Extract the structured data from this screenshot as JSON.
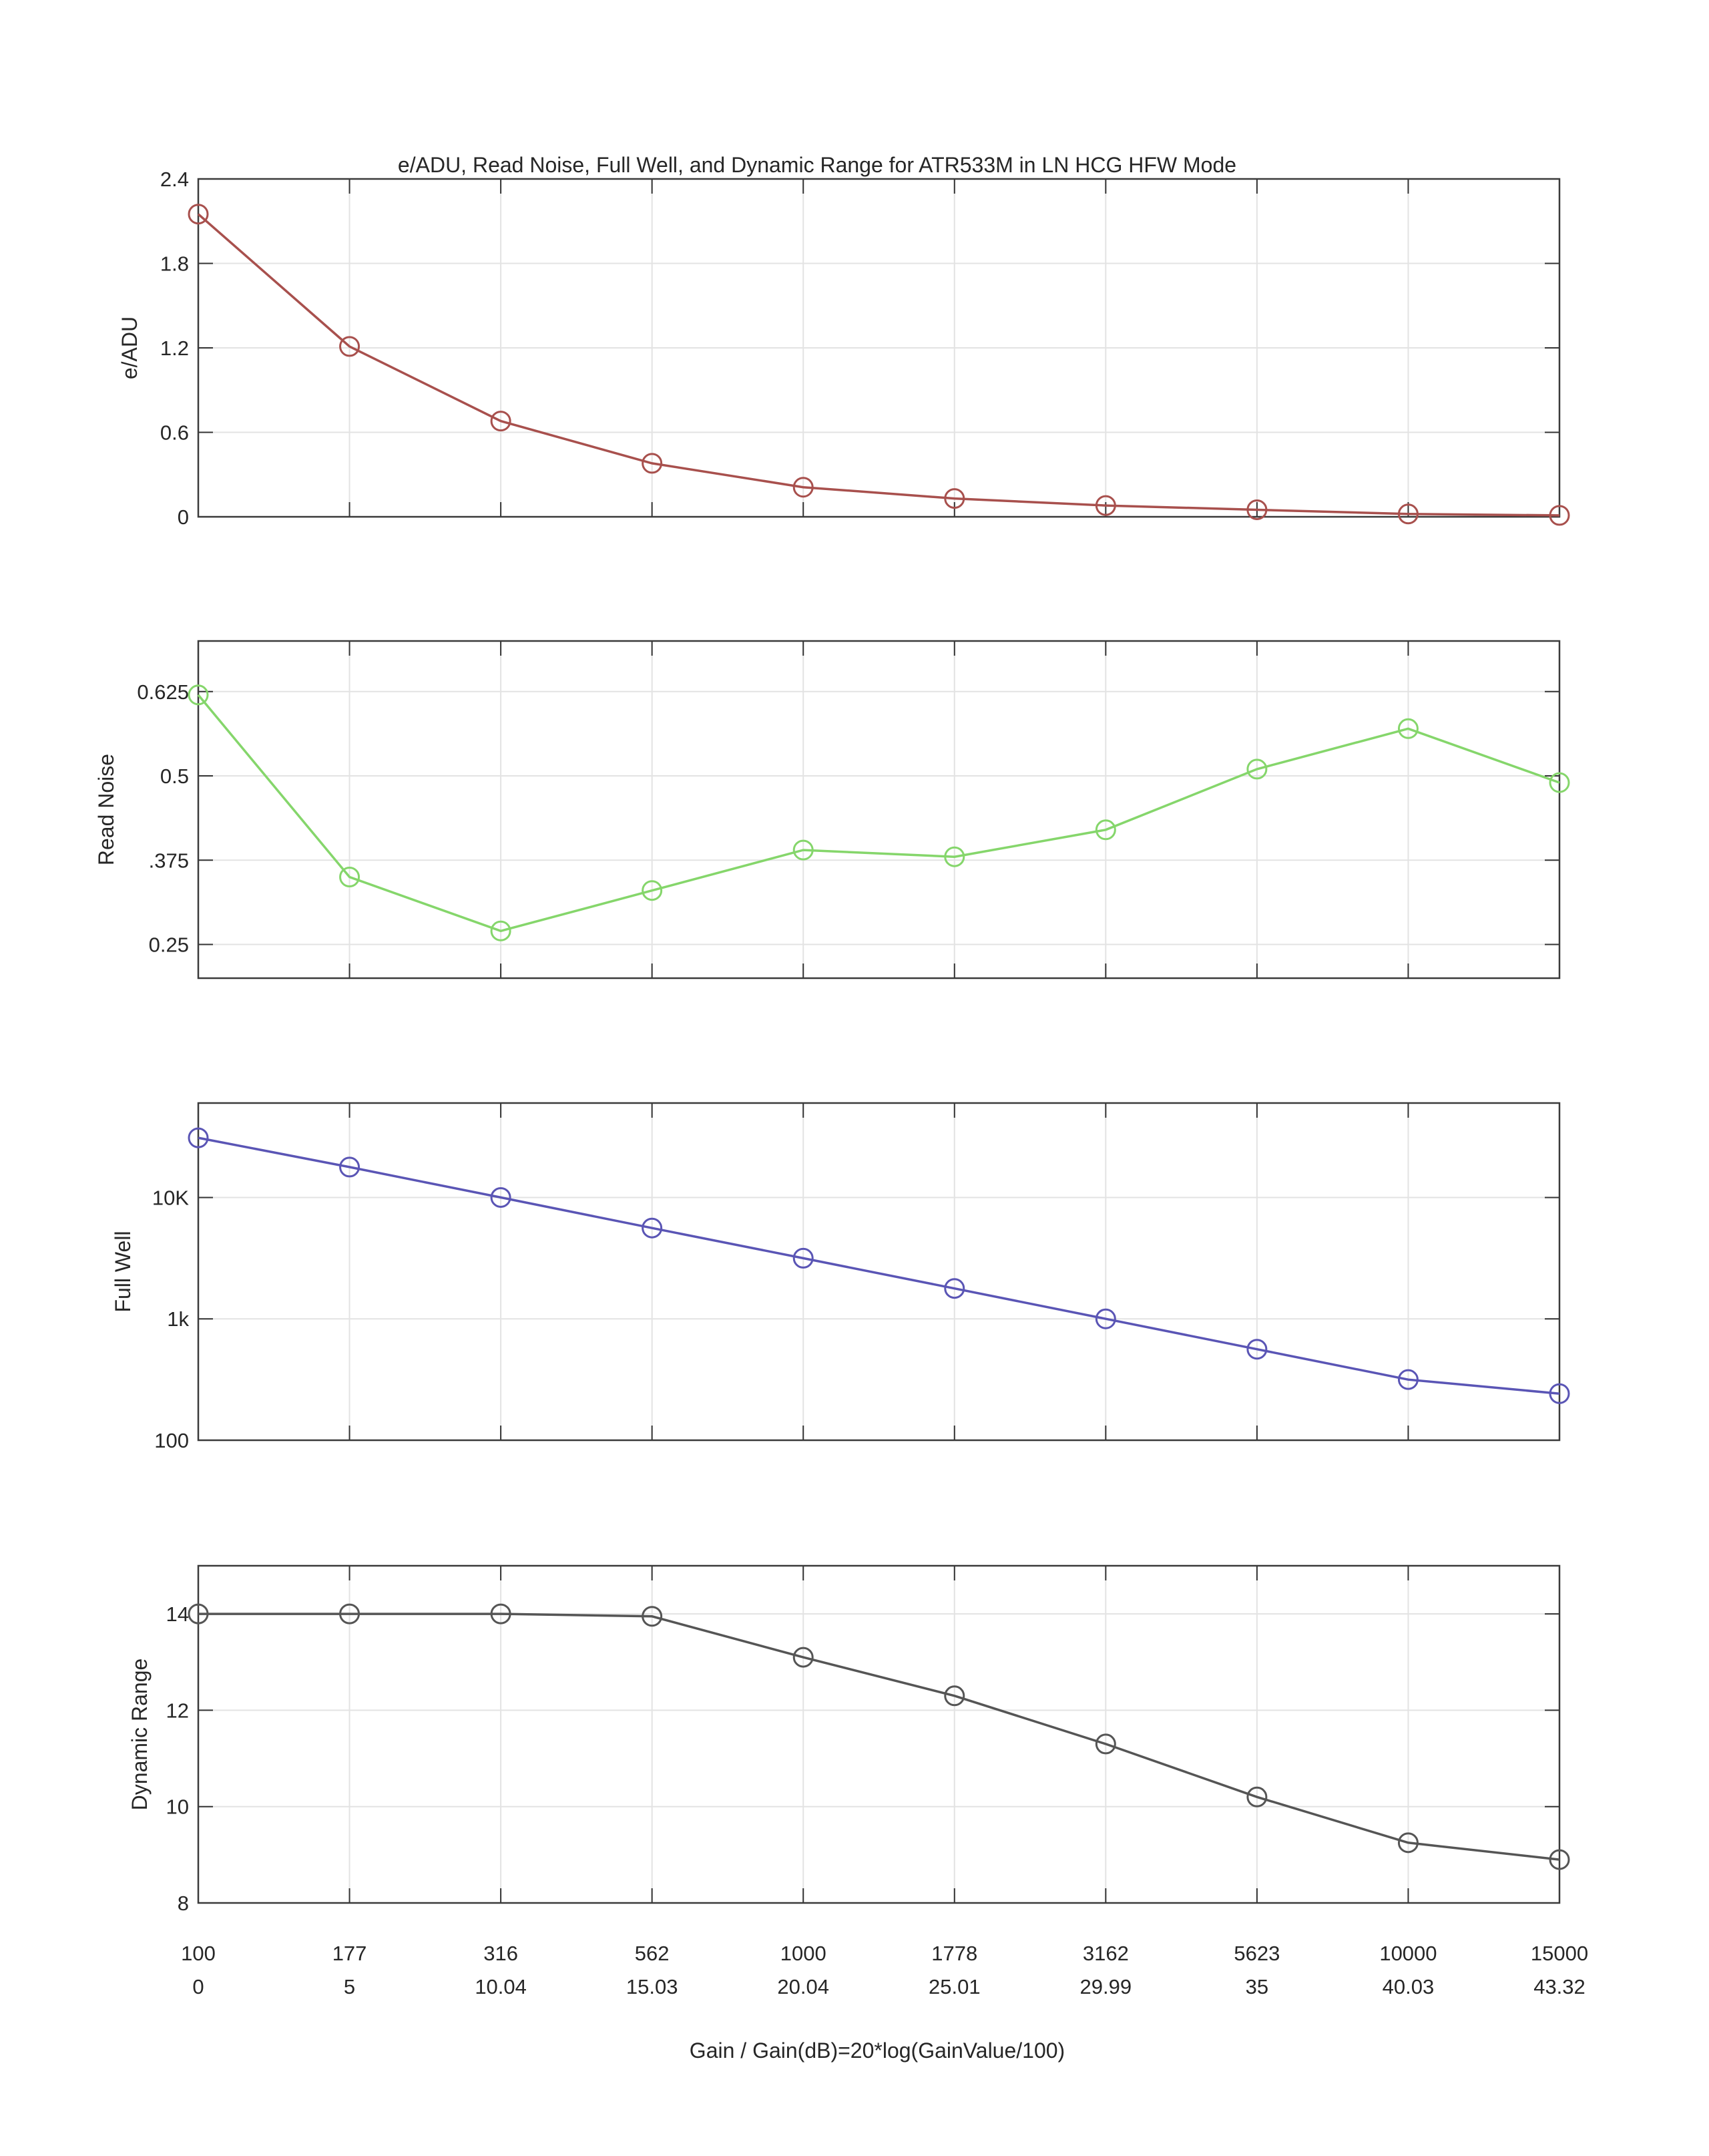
{
  "chart_data": {
    "type": "line",
    "title": "e/ADU, Read Noise, Full Well, and Dynamic Range for  ATR533M    in LN HCG HFW Mode",
    "xlabel": "Gain / Gain(dB)=20*log(GainValue/100)",
    "x_gain": [
      "100",
      "177",
      "316",
      "562",
      "1000",
      "1778",
      "3162",
      "5623",
      "10000",
      "15000"
    ],
    "x_gain_db": [
      "0",
      "5",
      "10.04",
      "15.03",
      "20.04",
      "25.01",
      "29.99",
      "35",
      "40.03",
      "43.32"
    ],
    "grid": true,
    "marker": "circle",
    "panels": [
      {
        "ylabel": "e/ADU",
        "scale": "linear",
        "ylim": [
          0,
          2.4
        ],
        "yticks": [
          0,
          0.6,
          1.2,
          1.8,
          2.4
        ],
        "ytick_labels": [
          "0",
          "0.6",
          "1.2",
          "1.8",
          "2.4"
        ],
        "color": "#a8504d",
        "values": [
          2.15,
          1.21,
          0.68,
          0.38,
          0.21,
          0.13,
          0.08,
          0.05,
          0.02,
          0.01
        ]
      },
      {
        "ylabel": "Read Noise",
        "scale": "linear",
        "ylim": [
          0.2,
          0.7
        ],
        "yticks": [
          0.25,
          0.375,
          0.5,
          0.625
        ],
        "ytick_labels": [
          "0.25",
          ".375",
          "0.5",
          "0.625"
        ],
        "color": "#85d66b",
        "values": [
          0.62,
          0.35,
          0.27,
          0.33,
          0.39,
          0.38,
          0.42,
          0.51,
          0.57,
          0.49
        ]
      },
      {
        "ylabel": "Full Well",
        "scale": "log",
        "ylim": [
          100,
          60000
        ],
        "yticks": [
          100,
          1000,
          10000
        ],
        "ytick_labels": [
          "100",
          "1k",
          "10K"
        ],
        "color": "#5a55b5",
        "values": [
          31000,
          17800,
          10000,
          5600,
          3160,
          1780,
          1000,
          562,
          316,
          242
        ]
      },
      {
        "ylabel": "Dynamic Range",
        "scale": "linear",
        "ylim": [
          8,
          15
        ],
        "yticks": [
          8,
          10,
          12,
          14
        ],
        "ytick_labels": [
          "8",
          "10",
          "12",
          "14"
        ],
        "color": "#555555",
        "values": [
          14,
          14,
          14,
          13.95,
          13.1,
          12.3,
          11.3,
          10.2,
          9.25,
          8.9
        ]
      }
    ]
  }
}
